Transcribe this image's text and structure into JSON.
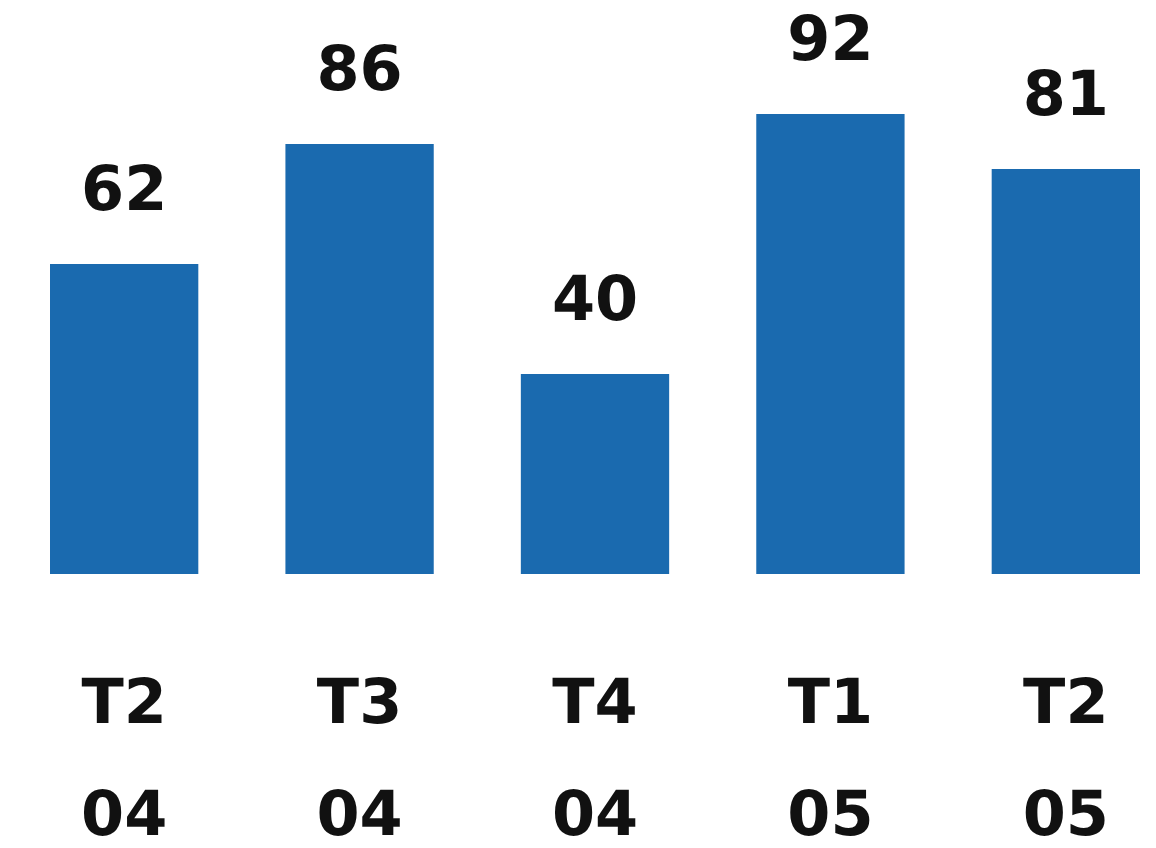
{
  "chart_data": {
    "type": "bar",
    "categories": [
      "T2 04",
      "T3 04",
      "T4 04",
      "T1 05",
      "T2 05"
    ],
    "values": [
      62,
      86,
      40,
      92,
      81
    ],
    "color": "#1a6aaf",
    "data_labels": true
  }
}
